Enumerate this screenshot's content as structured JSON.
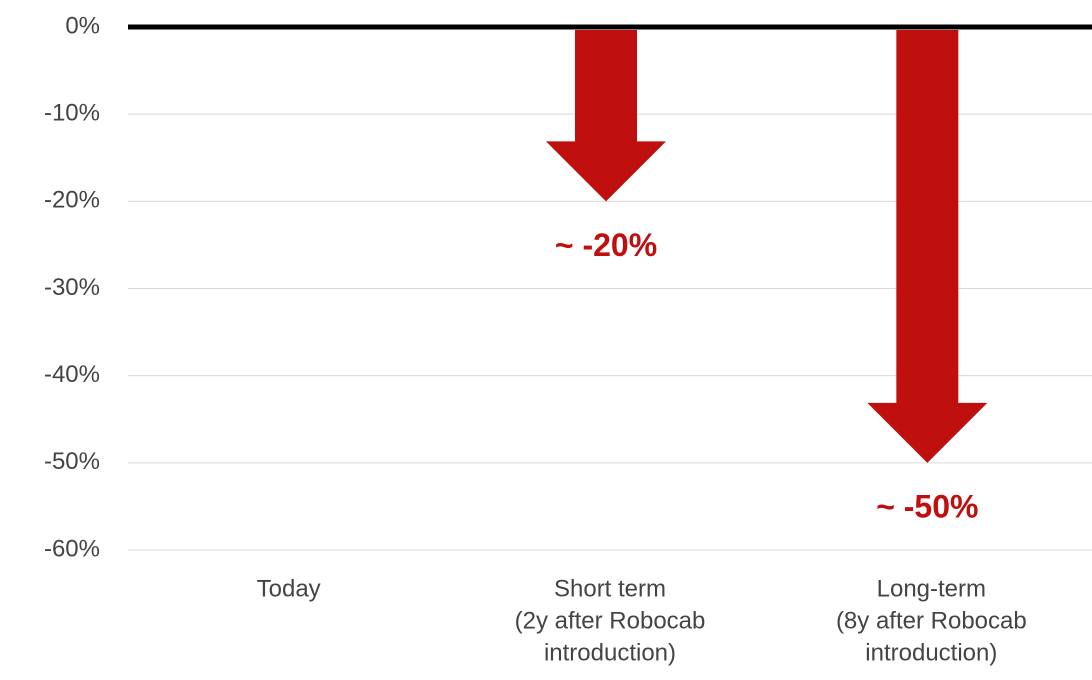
{
  "chart_data": {
    "type": "bar",
    "categories": [
      [
        "Today"
      ],
      [
        "Short term",
        "(2y after Robocab",
        "introduction)"
      ],
      [
        "Long-term",
        "(8y after Robocab",
        "introduction)"
      ]
    ],
    "values": [
      null,
      -20,
      -50
    ],
    "value_labels": [
      null,
      "~ -20%",
      "~ -50%"
    ],
    "color": "#c00f0f",
    "ylim": [
      -60,
      0
    ],
    "yticks": [
      {
        "value": 0,
        "label": "0%"
      },
      {
        "value": -10,
        "label": "-10%"
      },
      {
        "value": -20,
        "label": "-20%"
      },
      {
        "value": -30,
        "label": "-30%"
      },
      {
        "value": -40,
        "label": "-40%"
      },
      {
        "value": -50,
        "label": "-50%"
      },
      {
        "value": -60,
        "label": "-60%"
      }
    ],
    "grid": true
  }
}
